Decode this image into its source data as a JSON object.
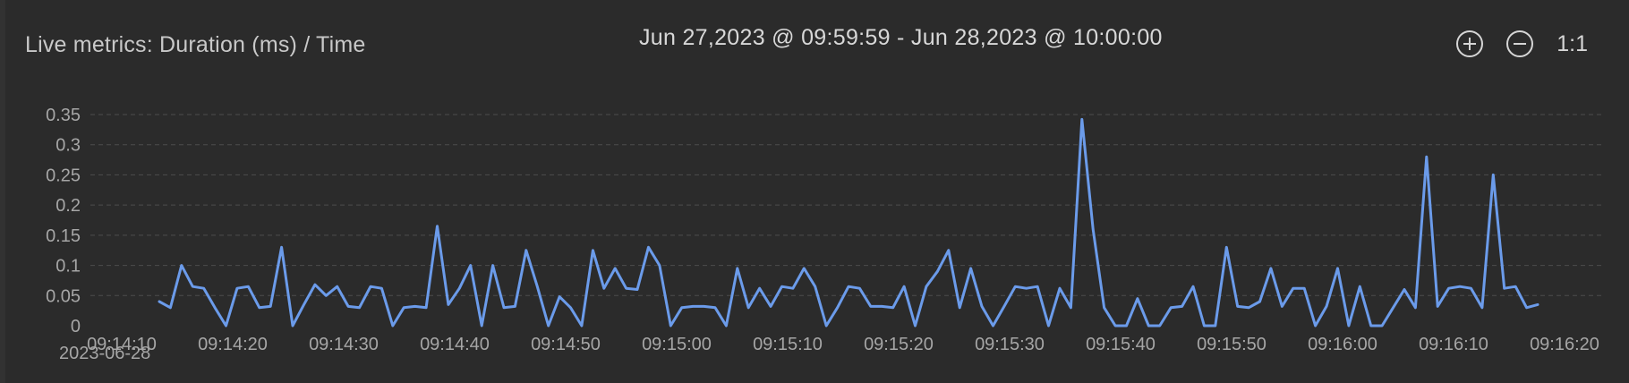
{
  "header": {
    "title": "Live metrics: Duration (ms) / Time",
    "range": "Jun 27,2023 @ 09:59:59 - Jun 28,2023 @ 10:00:00",
    "zoom_in_icon": "zoom-in-icon",
    "zoom_out_icon": "zoom-out-icon",
    "reset_label": "1:1"
  },
  "chart_data": {
    "type": "line",
    "title": "",
    "xlabel": "",
    "ylabel": "",
    "date_label": "2023-06-28",
    "x_ticks": [
      "09:14:10",
      "09:14:20",
      "09:14:30",
      "09:14:40",
      "09:14:50",
      "09:15:00",
      "09:15:10",
      "09:15:20",
      "09:15:30",
      "09:15:40",
      "09:15:50",
      "09:16:00",
      "09:16:10",
      "09:16:20"
    ],
    "y_ticks": [
      "0",
      "0.05",
      "0.1",
      "0.15",
      "0.2",
      "0.25",
      "0.3",
      "0.35"
    ],
    "ylim": [
      0,
      0.35
    ],
    "grid": true,
    "line_color": "#6b9bea",
    "series": [
      {
        "name": "",
        "values": [
          0.04,
          0.03,
          0.1,
          0.065,
          0.062,
          0.03,
          0.0,
          0.062,
          0.065,
          0.03,
          0.032,
          0.13,
          0.0,
          0.035,
          0.068,
          0.05,
          0.065,
          0.032,
          0.03,
          0.065,
          0.062,
          0.0,
          0.03,
          0.032,
          0.03,
          0.165,
          0.035,
          0.062,
          0.1,
          0.0,
          0.1,
          0.03,
          0.032,
          0.125,
          0.065,
          0.0,
          0.048,
          0.03,
          0.0,
          0.125,
          0.062,
          0.095,
          0.062,
          0.06,
          0.13,
          0.1,
          0.0,
          0.03,
          0.032,
          0.032,
          0.03,
          0.0,
          0.095,
          0.03,
          0.062,
          0.032,
          0.065,
          0.062,
          0.095,
          0.065,
          0.0,
          0.03,
          0.065,
          0.062,
          0.032,
          0.032,
          0.03,
          0.065,
          0.0,
          0.065,
          0.09,
          0.125,
          0.03,
          0.095,
          0.032,
          0.0,
          0.032,
          0.065,
          0.062,
          0.065,
          0.0,
          0.062,
          0.03,
          0.342,
          0.16,
          0.03,
          0.0,
          0.0,
          0.045,
          0.0,
          0.0,
          0.03,
          0.032,
          0.065,
          0.0,
          0.0,
          0.13,
          0.032,
          0.03,
          0.04,
          0.095,
          0.032,
          0.062,
          0.062,
          0.0,
          0.032,
          0.095,
          0.0,
          0.065,
          0.0,
          0.0,
          0.03,
          0.06,
          0.03,
          0.28,
          0.032,
          0.062,
          0.065,
          0.062,
          0.03,
          0.25,
          0.062,
          0.065,
          0.03,
          0.035
        ]
      }
    ]
  }
}
